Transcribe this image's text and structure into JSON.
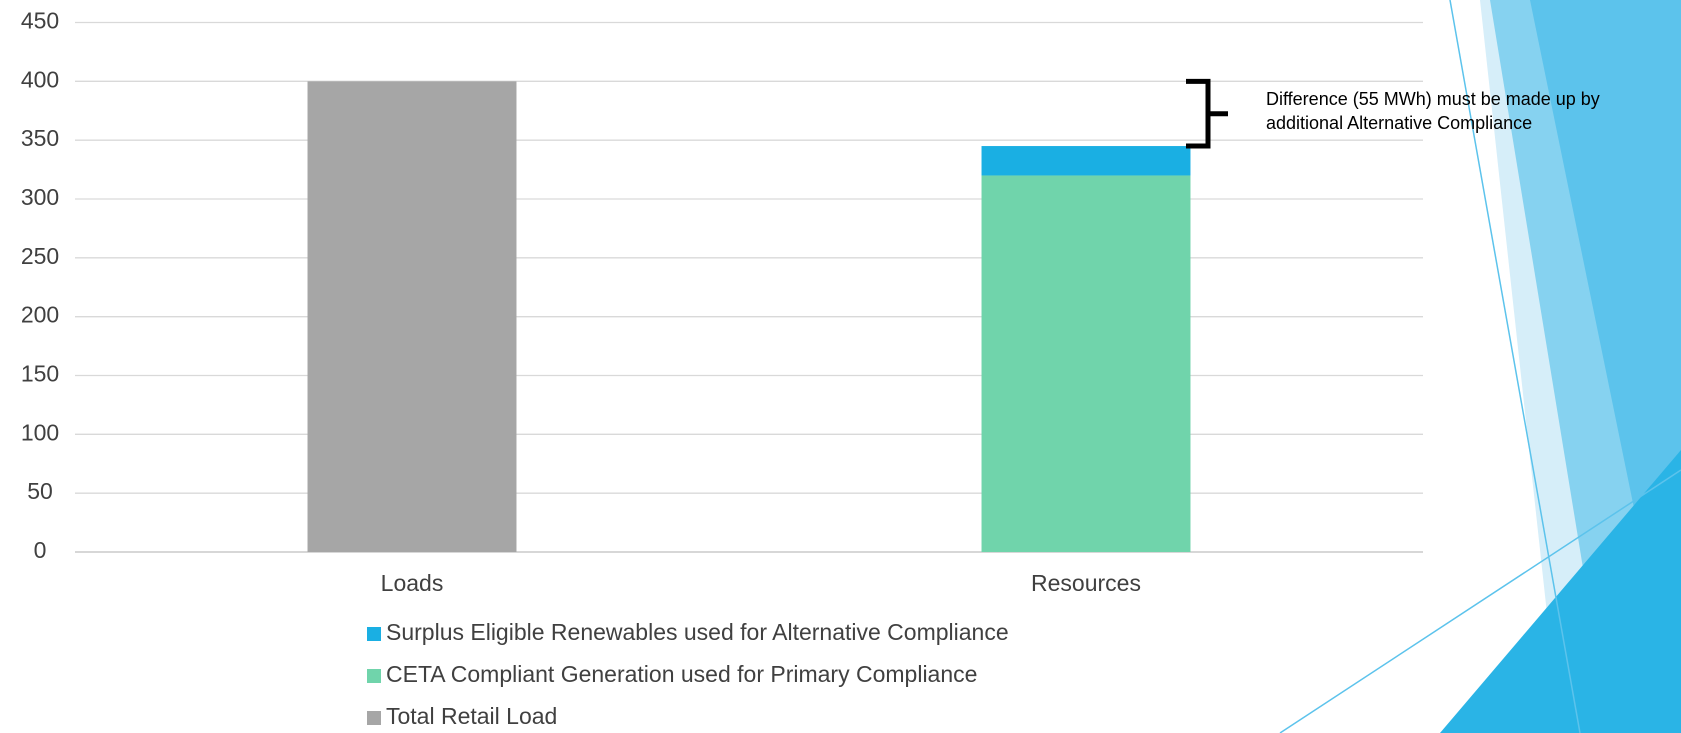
{
  "chart_data": {
    "type": "stacked-bar",
    "categories": [
      "Loads",
      "Resources"
    ],
    "series": [
      {
        "name": "Surplus Eligible Renewables used for Alternative Compliance",
        "color": "#1aafe3",
        "values": [
          null,
          25
        ]
      },
      {
        "name": "CETA Compliant Generation used for Primary Compliance",
        "color": "#70d4ab",
        "values": [
          null,
          320
        ]
      },
      {
        "name": "Total Retail Load",
        "color": "#a6a6a6",
        "values": [
          400,
          null
        ]
      }
    ],
    "ylim": [
      0,
      450
    ],
    "yticks": [
      0,
      50,
      100,
      150,
      200,
      250,
      300,
      350,
      400,
      450
    ],
    "grid": true,
    "legend": "bottom",
    "annotation": [
      "Difference (55 MWh) must be made up by",
      "additional Alternative Compliance"
    ]
  }
}
